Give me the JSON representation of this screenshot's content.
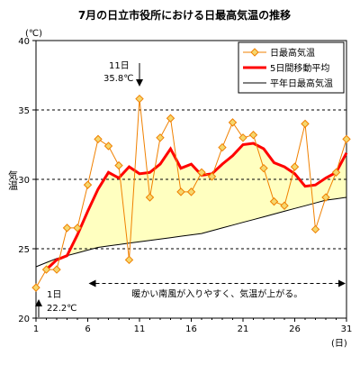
{
  "chart_data": {
    "type": "line",
    "title": "7月の日立市役所における日最高気温の推移",
    "ylabel": "気温",
    "yunit": "(℃)",
    "xunit": "(日)",
    "xlim": [
      1,
      31
    ],
    "ylim": [
      20,
      40
    ],
    "x_ticks": [
      1,
      6,
      11,
      16,
      21,
      26,
      31
    ],
    "y_ticks": [
      20,
      25,
      30,
      35,
      40
    ],
    "y_gridlines": [
      25,
      30,
      35
    ],
    "legend_position": "top-right",
    "x": [
      1,
      2,
      3,
      4,
      5,
      6,
      7,
      8,
      9,
      10,
      11,
      12,
      13,
      14,
      15,
      16,
      17,
      18,
      19,
      20,
      21,
      22,
      23,
      24,
      25,
      26,
      27,
      28,
      29,
      30,
      31
    ],
    "series": [
      {
        "name": "日最高気温",
        "color": "#f08000",
        "marker": "diamond",
        "marker_fill": "#f5d76e",
        "values": [
          22.2,
          23.5,
          23.5,
          26.5,
          26.5,
          29.6,
          32.9,
          32.4,
          31.0,
          24.2,
          35.8,
          28.7,
          33.0,
          34.4,
          29.1,
          29.1,
          30.5,
          30.2,
          32.3,
          34.1,
          33.0,
          33.2,
          30.8,
          28.4,
          28.1,
          30.9,
          34.0,
          26.4,
          28.7,
          30.5,
          32.9
        ]
      },
      {
        "name": "5日間移動平均",
        "color": "#ff0000",
        "values": [
          null,
          23.5,
          24.2,
          24.5,
          26.0,
          27.7,
          29.3,
          30.5,
          30.1,
          30.9,
          30.4,
          30.5,
          31.1,
          32.2,
          30.8,
          31.1,
          30.3,
          30.4,
          31.1,
          31.7,
          32.5,
          32.6,
          32.2,
          31.2,
          30.9,
          30.4,
          29.5,
          29.6,
          30.1,
          30.5,
          31.9
        ]
      },
      {
        "name": "平年日最高気温",
        "color": "#000000",
        "values": [
          23.7,
          24.0,
          24.3,
          24.5,
          24.7,
          24.9,
          25.1,
          25.2,
          25.3,
          25.4,
          25.5,
          25.6,
          25.7,
          25.8,
          25.9,
          26.0,
          26.1,
          26.3,
          26.5,
          26.7,
          26.9,
          27.1,
          27.3,
          27.5,
          27.7,
          27.9,
          28.1,
          28.3,
          28.5,
          28.6,
          28.7
        ]
      }
    ],
    "area_fill": {
      "between": [
        "平年日最高気温",
        "5日間移動平均"
      ],
      "color": "#ffffc0"
    },
    "annotations": [
      {
        "text": "11日",
        "x": 11,
        "y": 35.8
      },
      {
        "text": "35.8℃",
        "x": 11,
        "y": 35.8
      },
      {
        "text": "1日",
        "x": 1,
        "y": 22.2
      },
      {
        "text": "22.2℃",
        "x": 1,
        "y": 22.2
      },
      {
        "text": "暖かい南風が入りやすく、気温が上がる。",
        "x_range": [
          6,
          31
        ],
        "y": 22.5
      }
    ]
  }
}
